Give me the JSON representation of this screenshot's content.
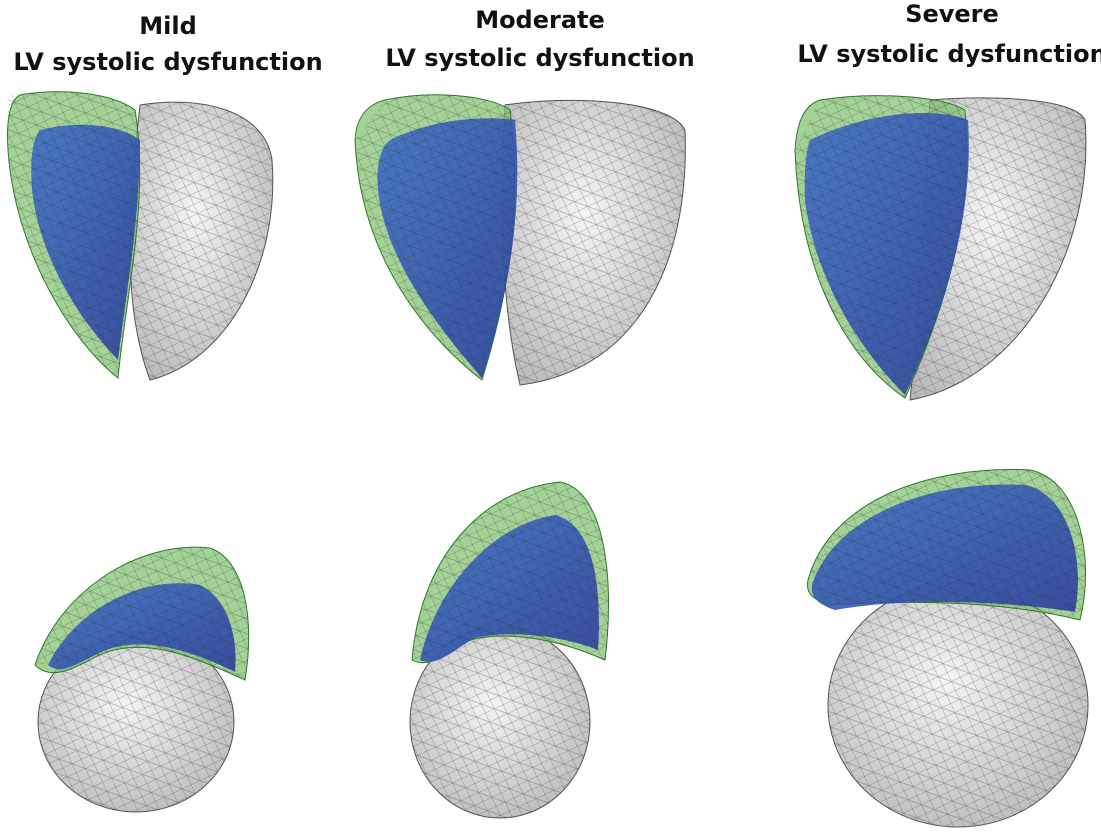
{
  "panels": [
    {
      "title": "Mild",
      "subtitle": "LV systolic dysfunction"
    },
    {
      "title": "Moderate",
      "subtitle": "LV systolic dysfunction"
    },
    {
      "title": "Severe",
      "subtitle": "LV systolic dysfunction"
    }
  ]
}
